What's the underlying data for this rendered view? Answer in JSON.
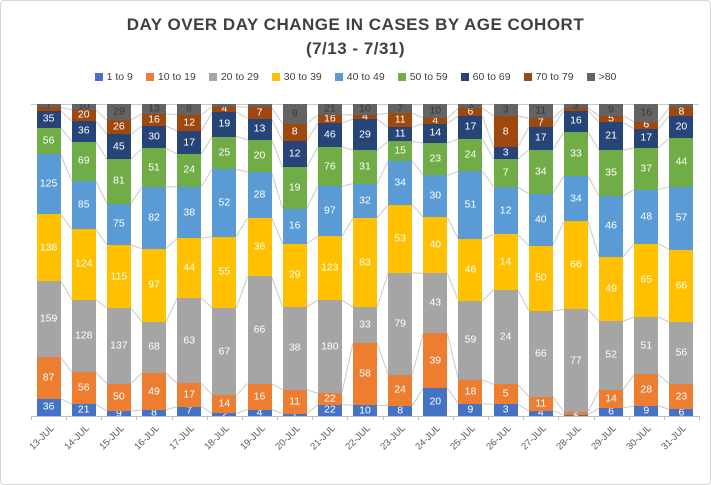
{
  "title": {
    "line1": "DAY OVER DAY CHANGE IN CASES BY AGE COHORT",
    "line2": "(7/13 - 7/31)"
  },
  "chart_data": {
    "type": "bar",
    "stacking": "percent",
    "title": "DAY OVER DAY CHANGE IN CASES BY AGE COHORT (7/13 - 7/31)",
    "xlabel": "",
    "ylabel": "",
    "legend_position": "top",
    "y_axis_visible": false,
    "categories": [
      "13-JUL",
      "14-JUL",
      "15-JUL",
      "16-JUL",
      "17-JUL",
      "18-JUL",
      "19-JUL",
      "20-JUL",
      "21-JUL",
      "22-JUL",
      "23-JUL",
      "24-JUL",
      "25-JUL",
      "26-JUL",
      "27-JUL",
      "28-JUL",
      "29-JUL",
      "30-JUL",
      "31-JUL"
    ],
    "series": [
      {
        "name": "1 to 9",
        "color": "#4472C4",
        "label_color": "#ffffff",
        "values": [
          36,
          21,
          9,
          8,
          7,
          2,
          4,
          1,
          22,
          10,
          8,
          20,
          9,
          3,
          4,
          1,
          6,
          9,
          6
        ],
        "labels": [
          "36",
          "21",
          "9",
          "8",
          "7",
          "2",
          "4",
          "1",
          "22",
          "10",
          "8",
          "20",
          "9",
          "3",
          "4",
          "1",
          "6",
          "9",
          "6"
        ]
      },
      {
        "name": "10 to 19",
        "color": "#ED7D31",
        "label_color": "#ffffff",
        "values": [
          87,
          56,
          50,
          49,
          17,
          14,
          16,
          11,
          22,
          58,
          24,
          39,
          18,
          5,
          11,
          2,
          14,
          28,
          23
        ],
        "labels": [
          "87",
          "56",
          "50",
          "49",
          "17",
          "14",
          "16",
          "11",
          "22",
          "58",
          "24",
          "39",
          "18",
          "5",
          "11",
          "2",
          "14",
          "28",
          "23"
        ]
      },
      {
        "name": "20 to 29",
        "color": "#A5A5A5",
        "label_color": "#ffffff",
        "values": [
          159,
          128,
          137,
          68,
          63,
          67,
          66,
          38,
          180,
          33,
          79,
          43,
          59,
          24,
          66,
          77,
          52,
          51,
          56
        ],
        "labels": [
          "159",
          "128",
          "137",
          "68",
          "63",
          "67",
          "66",
          "38",
          "180",
          "33",
          "79",
          "43",
          "59",
          "24",
          "66",
          "77",
          "52",
          "51",
          "56"
        ]
      },
      {
        "name": "30 to 39",
        "color": "#FFC000",
        "label_color": "#ffffff",
        "values": [
          138,
          124,
          115,
          97,
          44,
          55,
          36,
          29,
          123,
          83,
          53,
          40,
          46,
          14,
          50,
          66,
          49,
          65,
          66
        ],
        "labels": [
          "138",
          "124",
          "115",
          "97",
          "44",
          "55",
          "36",
          "29",
          "123",
          "83",
          "53",
          "40",
          "46",
          "14",
          "50",
          "66",
          "49",
          "65",
          "66"
        ]
      },
      {
        "name": "40 to 49",
        "color": "#5B9BD5",
        "label_color": "#ffffff",
        "values": [
          125,
          85,
          75,
          82,
          38,
          52,
          28,
          16,
          97,
          32,
          34,
          30,
          51,
          12,
          40,
          34,
          46,
          48,
          57
        ],
        "labels": [
          "125",
          "85",
          "75",
          "82",
          "38",
          "52",
          "28",
          "16",
          "97",
          "32",
          "34",
          "30",
          "51",
          "12",
          "40",
          "34",
          "46",
          "48",
          "57"
        ]
      },
      {
        "name": "50 to 59",
        "color": "#70AD47",
        "label_color": "#ffffff",
        "values": [
          56,
          69,
          81,
          51,
          24,
          25,
          20,
          19,
          76,
          31,
          15,
          23,
          24,
          7,
          34,
          33,
          35,
          37,
          44
        ],
        "labels": [
          "56",
          "69",
          "81",
          "51",
          "24",
          "25",
          "20",
          "19",
          "76",
          "31",
          "15",
          "23",
          "24",
          "7",
          "34",
          "33",
          "35",
          "37",
          "44"
        ]
      },
      {
        "name": "60 to 69",
        "color": "#264478",
        "label_color": "#ffffff",
        "values": [
          35,
          36,
          45,
          30,
          17,
          19,
          13,
          12,
          46,
          29,
          11,
          14,
          17,
          3,
          17,
          16,
          21,
          17,
          20
        ],
        "labels": [
          "35",
          "36",
          "45",
          "30",
          "17",
          "19",
          "13",
          "12",
          "46",
          "29",
          "11",
          "14",
          "17",
          "3",
          "17",
          "16",
          "21",
          "17",
          "20"
        ]
      },
      {
        "name": "70 to 79",
        "color": "#9E480E",
        "label_color": "#ffffff",
        "values": [
          7,
          20,
          26,
          16,
          12,
          4,
          7,
          8,
          16,
          4,
          11,
          4,
          6,
          8,
          7,
          2,
          5,
          6,
          8
        ],
        "labels": [
          "",
          "20",
          "26",
          "16",
          "12",
          "4",
          "7",
          "8",
          "16",
          "4",
          "11",
          "4",
          "6",
          "8",
          "7",
          "",
          "5",
          "6",
          "8"
        ]
      },
      {
        "name": ">80",
        "color": "#636363",
        "label_color": "#3b3b3b",
        "values": [
          7,
          10,
          29,
          13,
          8,
          2,
          2,
          9,
          21,
          10,
          7,
          10,
          3,
          3,
          11,
          3,
          9,
          16,
          3
        ],
        "labels": [
          "7",
          "10",
          "29",
          "13",
          "8",
          "",
          "",
          "9",
          "21",
          "10",
          "7",
          "10",
          "3",
          "3",
          "11",
          "3",
          "9",
          "16",
          ""
        ]
      }
    ],
    "series_lines_color": "#c9c9c9",
    "axis_color": "#bfbfbf"
  }
}
